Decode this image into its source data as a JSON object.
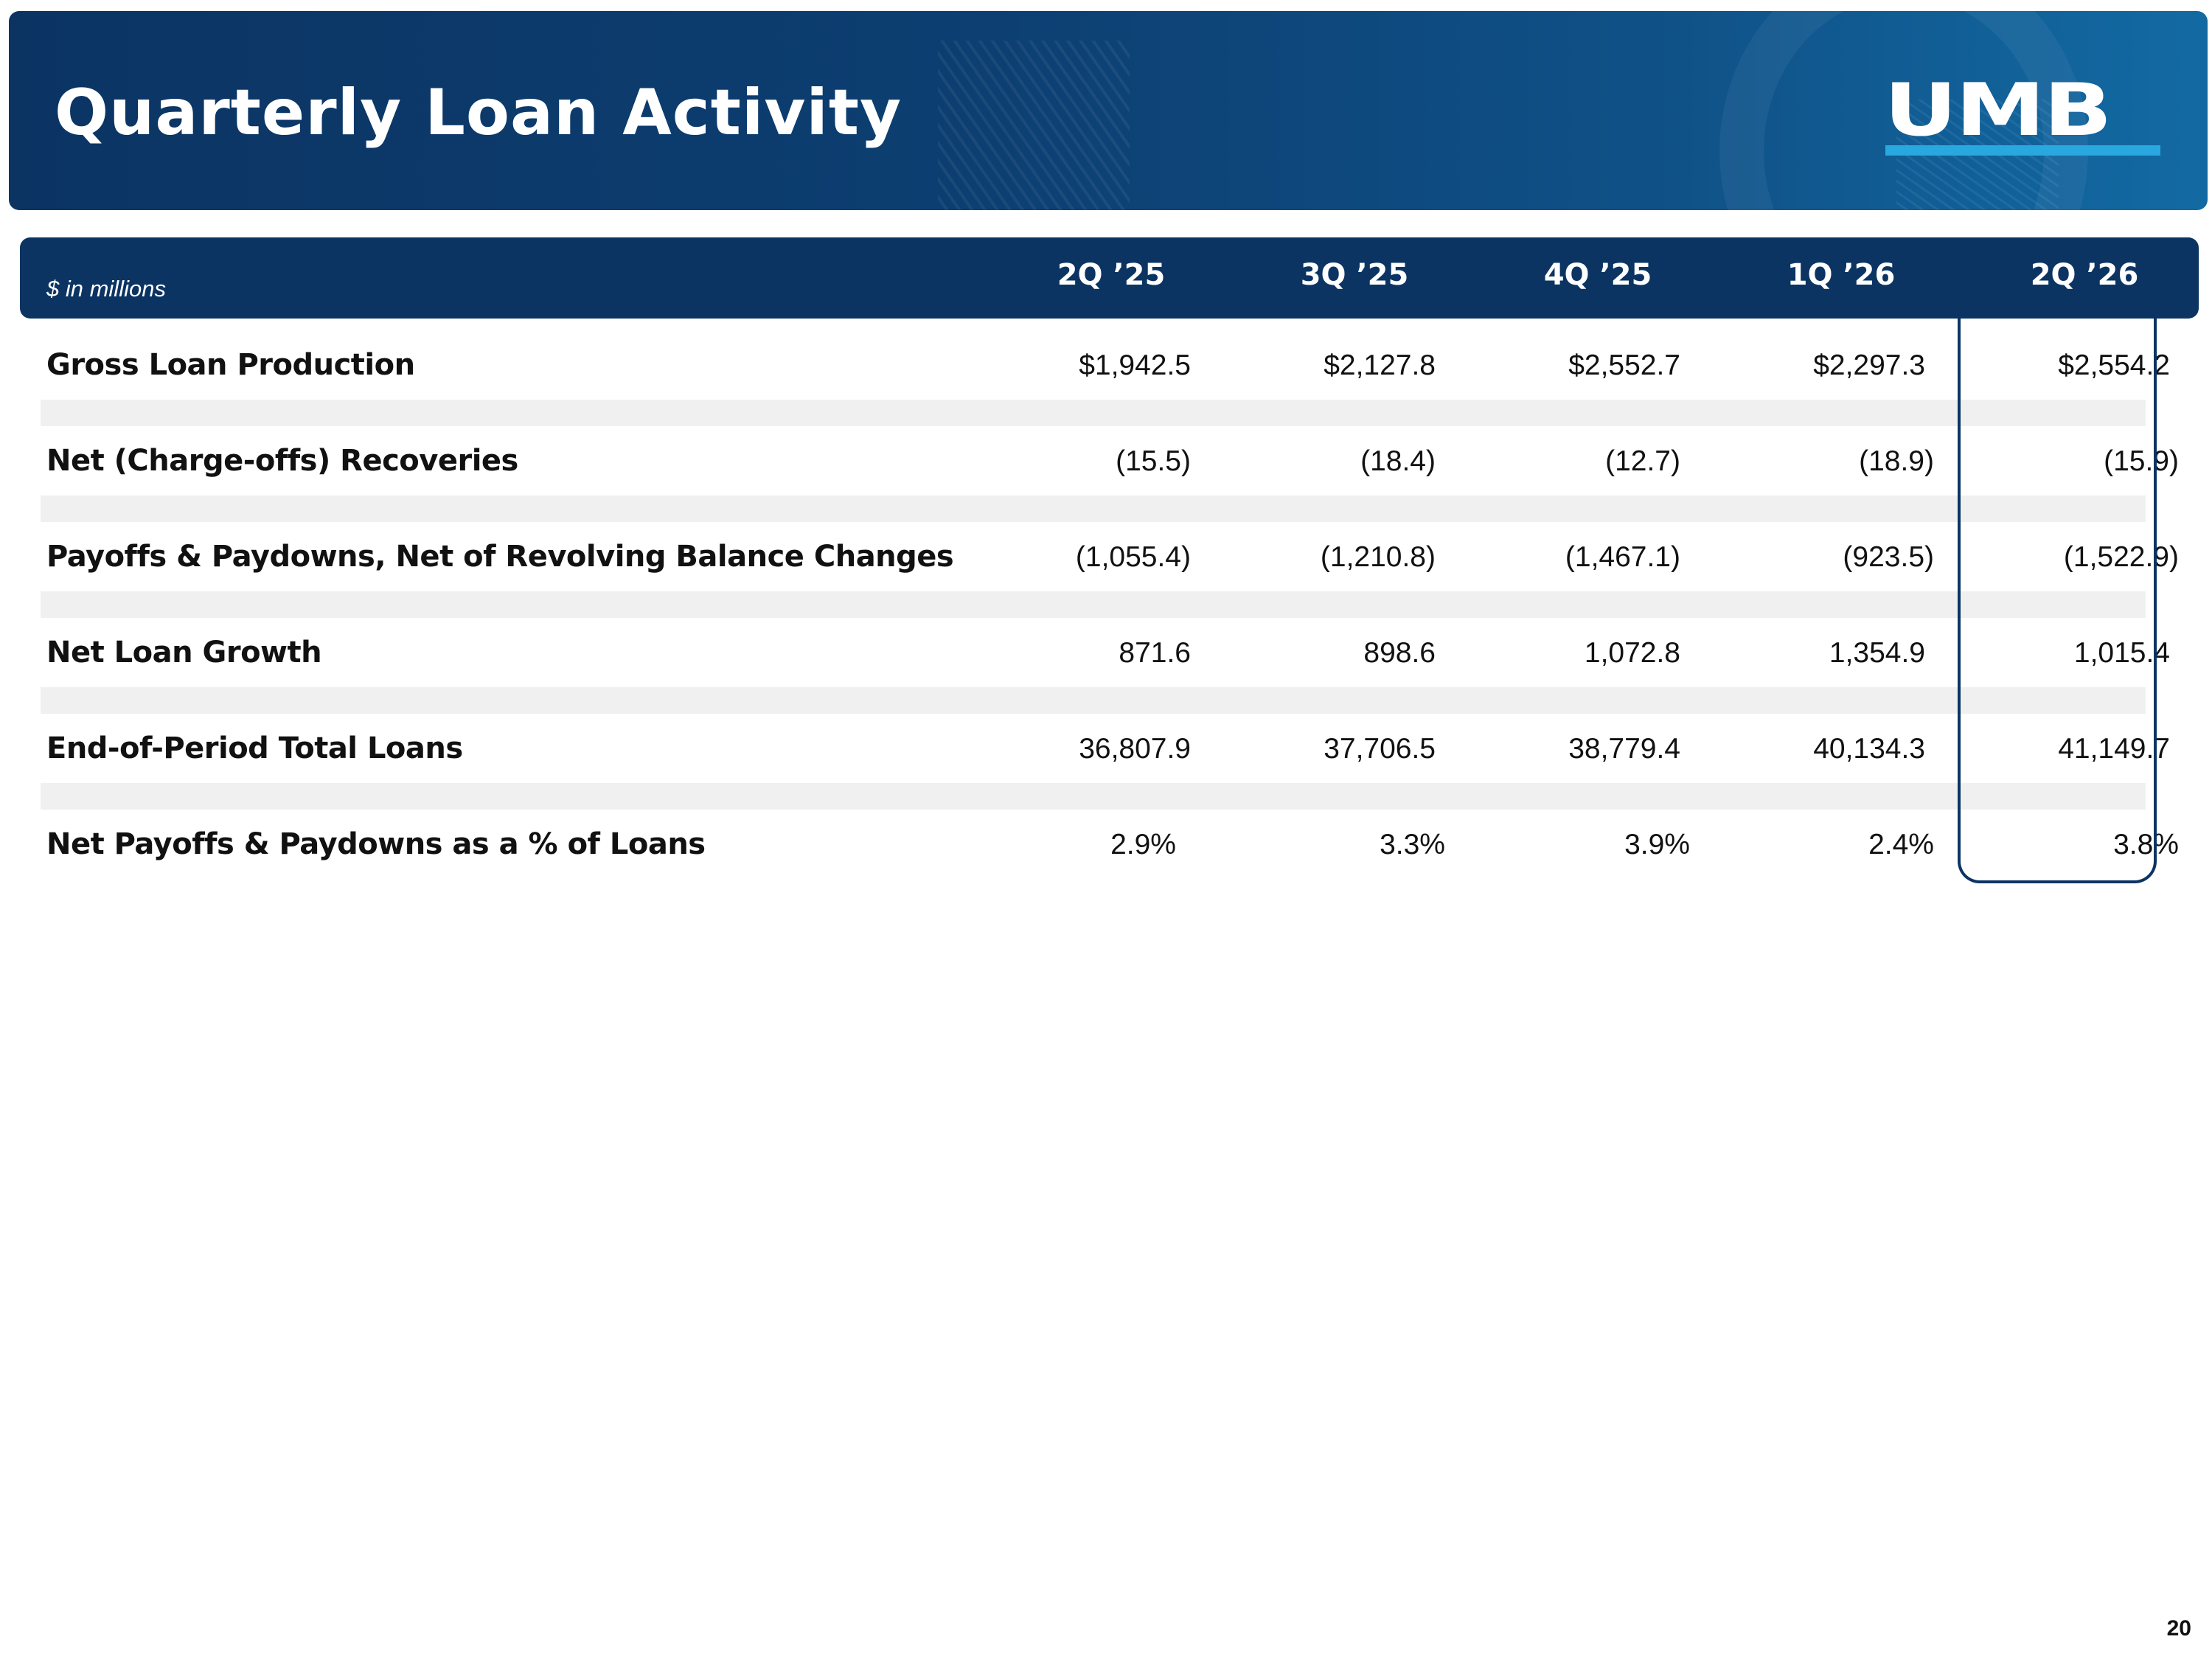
{
  "header": {
    "title": "Quarterly Loan Activity",
    "logo_text": "UMB"
  },
  "table": {
    "units_label": "$ in millions",
    "columns": [
      "2Q ’25",
      "3Q ’25",
      "4Q ’25",
      "1Q ’26",
      "2Q ’26"
    ],
    "rows": [
      {
        "label": "Gross Loan Production",
        "values": [
          "$1,942.5",
          "$2,127.8",
          "$2,552.7",
          "$2,297.3",
          "$2,554.2"
        ]
      },
      {
        "label": "Net (Charge-offs) Recoveries",
        "values": [
          "(15.5)",
          "(18.4)",
          "(12.7)",
          "(18.9)",
          "(15.9)"
        ]
      },
      {
        "label": "Payoffs & Paydowns, Net of Revolving Balance Changes",
        "values": [
          "(1,055.4)",
          "(1,210.8)",
          "(1,467.1)",
          "(923.5)",
          "(1,522.9)"
        ]
      },
      {
        "label": "Net Loan Growth",
        "values": [
          "871.6",
          "898.6",
          "1,072.8",
          "1,354.9",
          "1,015.4"
        ]
      },
      {
        "label": "End-of-Period Total Loans",
        "values": [
          "36,807.9",
          "37,706.5",
          "38,779.4",
          "40,134.3",
          "41,149.7"
        ]
      },
      {
        "label": "Net Payoffs & Paydowns as a % of Loans",
        "values": [
          "2.9%",
          "3.3%",
          "3.9%",
          "2.4%",
          "3.8%"
        ]
      }
    ],
    "highlighted_column": "2Q ’26"
  },
  "footer": {
    "page_number": "20"
  },
  "colors": {
    "navy": "#0b3463",
    "accent_blue": "#29a8e0",
    "row_separator": "#f0f0f0"
  }
}
